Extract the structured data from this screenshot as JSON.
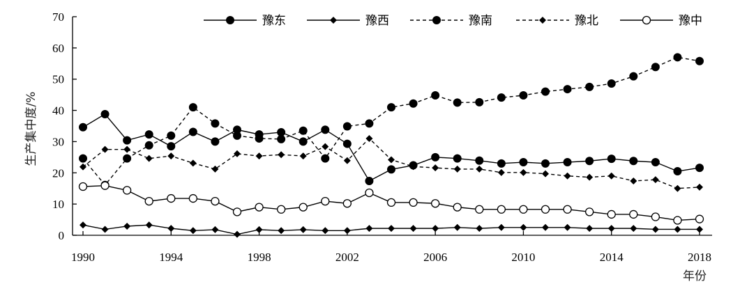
{
  "chart_data": {
    "type": "line",
    "title": "",
    "xlabel": "年份",
    "ylabel": "生产集中度/%",
    "x": [
      1990,
      1991,
      1992,
      1993,
      1994,
      1995,
      1996,
      1997,
      1998,
      1999,
      2000,
      2001,
      2002,
      2003,
      2004,
      2005,
      2006,
      2007,
      2008,
      2009,
      2010,
      2011,
      2012,
      2013,
      2014,
      2015,
      2016,
      2017,
      2018
    ],
    "xlim": [
      1990,
      2018
    ],
    "ylim": [
      0,
      70
    ],
    "xticks": [
      "1990",
      "1994",
      "1998",
      "2002",
      "2006",
      "2010",
      "2014",
      "2018"
    ],
    "yticks": [
      "0",
      "10",
      "20",
      "30",
      "40",
      "50",
      "60",
      "70"
    ],
    "legend_position": "top",
    "series": [
      {
        "name": "豫东",
        "line": "solid",
        "marker": "filled-circle",
        "values": [
          34.6,
          38.8,
          30.4,
          32.3,
          28.5,
          33.1,
          30.0,
          33.8,
          32.3,
          33.0,
          30.0,
          33.8,
          29.3,
          17.4,
          21.1,
          22.4,
          25.0,
          24.6,
          23.9,
          23.0,
          23.4,
          23.0,
          23.4,
          23.8,
          24.5,
          23.8,
          23.4,
          20.5,
          21.6
        ]
      },
      {
        "name": "豫西",
        "line": "solid",
        "marker": "filled-diamond",
        "values": [
          3.3,
          1.9,
          2.9,
          3.3,
          2.2,
          1.5,
          1.8,
          0.3,
          1.8,
          1.5,
          1.8,
          1.5,
          1.5,
          2.2,
          2.2,
          2.2,
          2.2,
          2.5,
          2.2,
          2.5,
          2.5,
          2.5,
          2.5,
          2.2,
          2.2,
          2.2,
          1.9,
          1.9,
          1.9
        ]
      },
      {
        "name": "豫南",
        "line": "dashed",
        "marker": "filled-circle",
        "values": [
          24.6,
          16.1,
          24.6,
          28.8,
          31.9,
          41.0,
          35.8,
          31.9,
          31.0,
          30.8,
          33.5,
          24.6,
          34.9,
          35.8,
          41.0,
          42.2,
          44.8,
          42.5,
          42.6,
          44.1,
          44.8,
          46.0,
          46.8,
          47.5,
          48.6,
          50.9,
          53.9,
          57.0,
          55.8
        ]
      },
      {
        "name": "豫北",
        "line": "dashed",
        "marker": "filled-diamond",
        "values": [
          21.9,
          27.5,
          27.5,
          24.6,
          25.4,
          23.1,
          21.2,
          26.1,
          25.4,
          25.8,
          25.4,
          28.4,
          23.9,
          31.0,
          24.2,
          22.0,
          21.6,
          21.2,
          21.2,
          20.1,
          20.1,
          19.7,
          19.0,
          18.6,
          19.0,
          17.4,
          17.8,
          15.0,
          15.4
        ]
      },
      {
        "name": "豫中",
        "line": "solid",
        "marker": "open-circle",
        "values": [
          15.6,
          15.9,
          14.4,
          10.9,
          11.8,
          11.8,
          10.9,
          7.5,
          9.0,
          8.3,
          9.0,
          10.9,
          10.2,
          13.6,
          10.5,
          10.5,
          10.2,
          9.0,
          8.3,
          8.3,
          8.3,
          8.3,
          8.3,
          7.5,
          6.7,
          6.7,
          5.9,
          4.8,
          5.2
        ]
      }
    ]
  }
}
